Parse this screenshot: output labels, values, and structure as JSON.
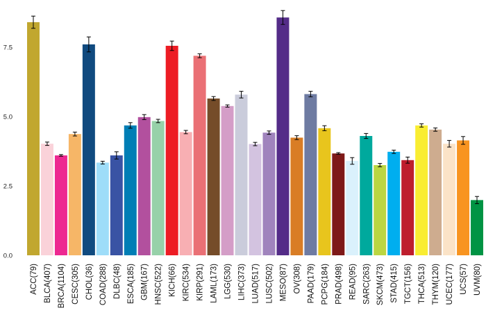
{
  "chart_data": {
    "type": "bar",
    "title": "",
    "xlabel": "",
    "ylabel": "",
    "ylim": [
      0,
      9.1
    ],
    "yticks": [
      0,
      2.5,
      5,
      7.5
    ],
    "ytick_labels": [
      "0.0",
      "2.5",
      "5.0",
      "7.5"
    ],
    "grid": false,
    "categories": [
      "ACC(79)",
      "BLCA(407)",
      "BRCA(1104)",
      "CESC(305)",
      "CHOL(36)",
      "COAD(288)",
      "DLBC(48)",
      "ESCA(185)",
      "GBM(167)",
      "HNSC(522)",
      "KICH(66)",
      "KIRC(534)",
      "KIRP(291)",
      "LAML(173)",
      "LGG(530)",
      "LIHC(373)",
      "LUAD(517)",
      "LUSC(502)",
      "MESO(87)",
      "OV(308)",
      "PAAD(179)",
      "PCPG(184)",
      "PRAD(498)",
      "READ(95)",
      "SARC(263)",
      "SKCM(473)",
      "STAD(415)",
      "TGCT(156)",
      "THCA(513)",
      "THYM(120)",
      "UCEC(177)",
      "UCS(57)",
      "UVM(80)"
    ],
    "values": [
      8.4,
      4.02,
      3.6,
      4.37,
      7.6,
      3.34,
      3.6,
      4.68,
      4.98,
      4.84,
      7.55,
      4.44,
      7.19,
      5.65,
      5.38,
      5.79,
      4.01,
      4.42,
      8.57,
      4.24,
      5.81,
      4.58,
      3.67,
      3.4,
      4.3,
      3.25,
      3.73,
      3.43,
      4.68,
      4.53,
      4.02,
      4.14,
      1.99
    ],
    "errors": [
      0.22,
      0.06,
      0.03,
      0.07,
      0.27,
      0.05,
      0.13,
      0.1,
      0.09,
      0.06,
      0.17,
      0.06,
      0.07,
      0.07,
      0.04,
      0.12,
      0.06,
      0.06,
      0.25,
      0.07,
      0.1,
      0.09,
      0.03,
      0.12,
      0.09,
      0.06,
      0.06,
      0.11,
      0.06,
      0.06,
      0.12,
      0.14,
      0.13
    ],
    "colors": [
      "#C1A72F",
      "#FAD2D9",
      "#ED2891",
      "#F6B667",
      "#104A7F",
      "#9EDDF9",
      "#3953A4",
      "#007EB5",
      "#B2509E",
      "#97D1A9",
      "#ED1C24",
      "#F8AFB3",
      "#EA7075",
      "#754C29",
      "#D49DC7",
      "#CACCDB",
      "#D3C3E0",
      "#A084BD",
      "#542C88",
      "#D97D25",
      "#6E7BA2",
      "#E8C51D",
      "#7E1918",
      "#DAF1FC",
      "#00A99D",
      "#BBD642",
      "#00AEEF",
      "#BE1E2D",
      "#F9ED32",
      "#CEAC8F",
      "#FBE3C7",
      "#F89420",
      "#009444"
    ]
  }
}
